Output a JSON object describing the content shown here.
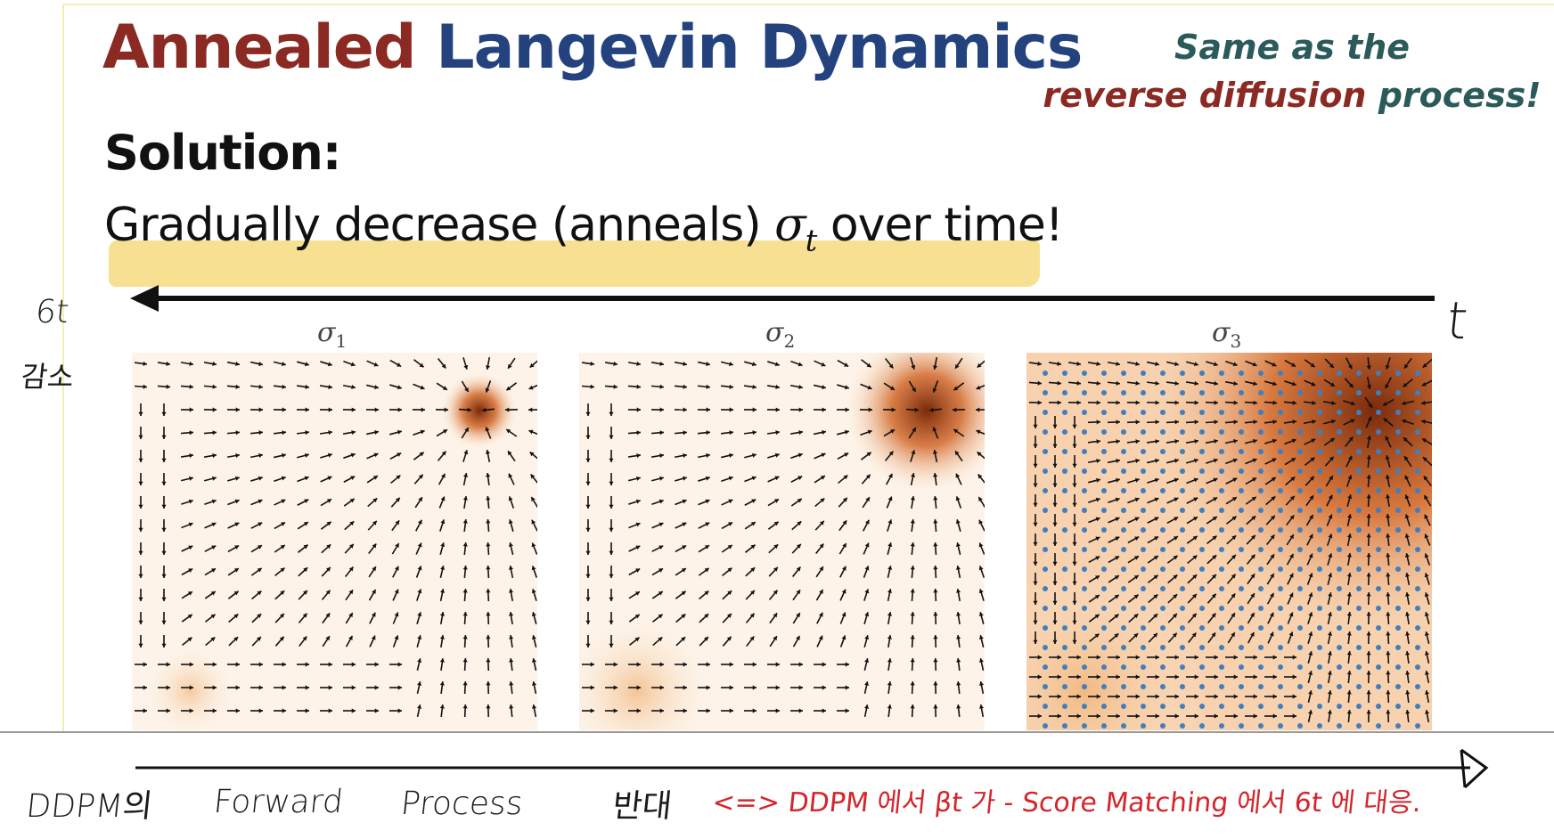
{
  "title": {
    "word1": "Annealed",
    "word2": "Langevin Dynamics",
    "color1": "#8b2a23",
    "color2": "#23427e"
  },
  "note": {
    "line1": "Same as the",
    "line2_red": "reverse diffusion",
    "line2_teal": "process!"
  },
  "solution_label": "Solution:",
  "statement": {
    "before": "Gradually decrease (anneals) ",
    "symbol": "σ",
    "subscript": "t",
    "after": " over time!"
  },
  "panels": [
    {
      "label": "σ",
      "sub": "1"
    },
    {
      "label": "σ",
      "sub": "2"
    },
    {
      "label": "σ",
      "sub": "3"
    }
  ],
  "handwriting": {
    "sigma_t": "6t",
    "decrease_kr": "감소",
    "t_right": "t",
    "ddpm": "DDPM의",
    "forward": "Forward",
    "process": "Process",
    "reverse_kr": "반대",
    "red_note": "<=> DDPM 에서 βt 가 - Score Matching 에서 6t 에 대응."
  }
}
